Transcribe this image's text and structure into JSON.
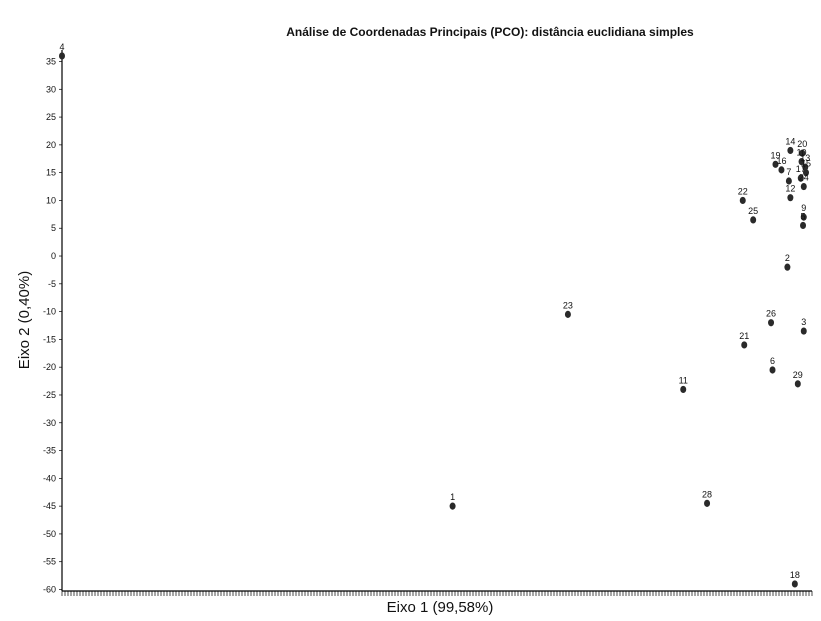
{
  "chart_data": {
    "type": "scatter",
    "title": "Análise de Coordenadas Principais (PCO): distância euclidiana simples",
    "xlabel": "Eixo 1 (99,58%)",
    "ylabel": "Eixo 2 (0,40%)",
    "ylim": [
      -60,
      37
    ],
    "yticks": [
      35,
      30,
      25,
      20,
      15,
      10,
      5,
      0,
      -5,
      -10,
      -15,
      -20,
      -25,
      -30,
      -35,
      -40,
      -45,
      -50,
      -55,
      -60
    ],
    "grid": false,
    "legend": "none",
    "points": [
      {
        "label": "4",
        "x": 0.0,
        "y": 36
      },
      {
        "label": "1",
        "x": 0.525,
        "y": -45
      },
      {
        "label": "23",
        "x": 0.68,
        "y": -10.5
      },
      {
        "label": "11",
        "x": 0.835,
        "y": -24
      },
      {
        "label": "28",
        "x": 0.867,
        "y": -44.5
      },
      {
        "label": "22",
        "x": 0.915,
        "y": 10
      },
      {
        "label": "25",
        "x": 0.929,
        "y": 6.5
      },
      {
        "label": "21",
        "x": 0.917,
        "y": -16
      },
      {
        "label": "26",
        "x": 0.953,
        "y": -12
      },
      {
        "label": "6",
        "x": 0.955,
        "y": -20.5
      },
      {
        "label": "19",
        "x": 0.959,
        "y": 16.5
      },
      {
        "label": "16",
        "x": 0.967,
        "y": 15.5
      },
      {
        "label": "14",
        "x": 0.979,
        "y": 19
      },
      {
        "label": "20",
        "x": 0.995,
        "y": 18.5
      },
      {
        "label": "7",
        "x": 0.977,
        "y": 13.5
      },
      {
        "label": "12",
        "x": 0.979,
        "y": 10.5
      },
      {
        "label": "2",
        "x": 0.975,
        "y": -2
      },
      {
        "label": "3",
        "x": 0.997,
        "y": -13.5
      },
      {
        "label": "29",
        "x": 0.989,
        "y": -23
      },
      {
        "label": "9",
        "x": 0.997,
        "y": 7
      },
      {
        "label": "5",
        "x": 0.996,
        "y": 5.5
      },
      {
        "label": "10",
        "x": 0.994,
        "y": 17
      },
      {
        "label": "13",
        "x": 0.999,
        "y": 16
      },
      {
        "label": "15",
        "x": 1.0,
        "y": 15
      },
      {
        "label": "17",
        "x": 0.993,
        "y": 14
      },
      {
        "label": "24",
        "x": 0.997,
        "y": 12.5
      },
      {
        "label": "18",
        "x": 0.985,
        "y": -59
      }
    ]
  }
}
